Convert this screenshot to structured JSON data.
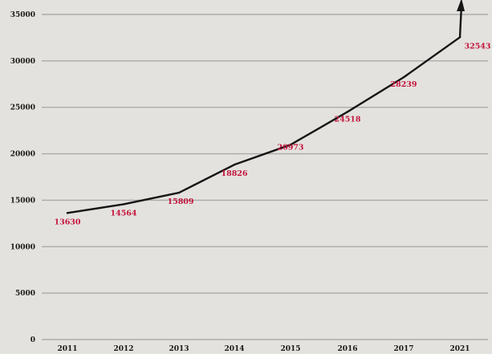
{
  "chart_data": {
    "type": "line",
    "categories": [
      "2011",
      "2012",
      "2013",
      "2014",
      "2015",
      "2016",
      "2017",
      "2021"
    ],
    "series": [
      {
        "values": [
          13630,
          14564,
          15809,
          18826,
          20973,
          24518,
          28239,
          32543
        ],
        "labels": [
          "13630",
          "14564",
          "15809",
          "18826",
          "20973",
          "24518",
          "28239",
          "32543"
        ]
      }
    ],
    "yticks": [
      "0",
      "5000",
      "10000",
      "15000",
      "20000",
      "25000",
      "30000",
      "35000"
    ],
    "ylim": [
      0,
      35000
    ],
    "grid": true,
    "colors": {
      "line": "#151515",
      "labels": "#c4123c",
      "grid": "#ababab",
      "background": "#e4e2de"
    }
  }
}
